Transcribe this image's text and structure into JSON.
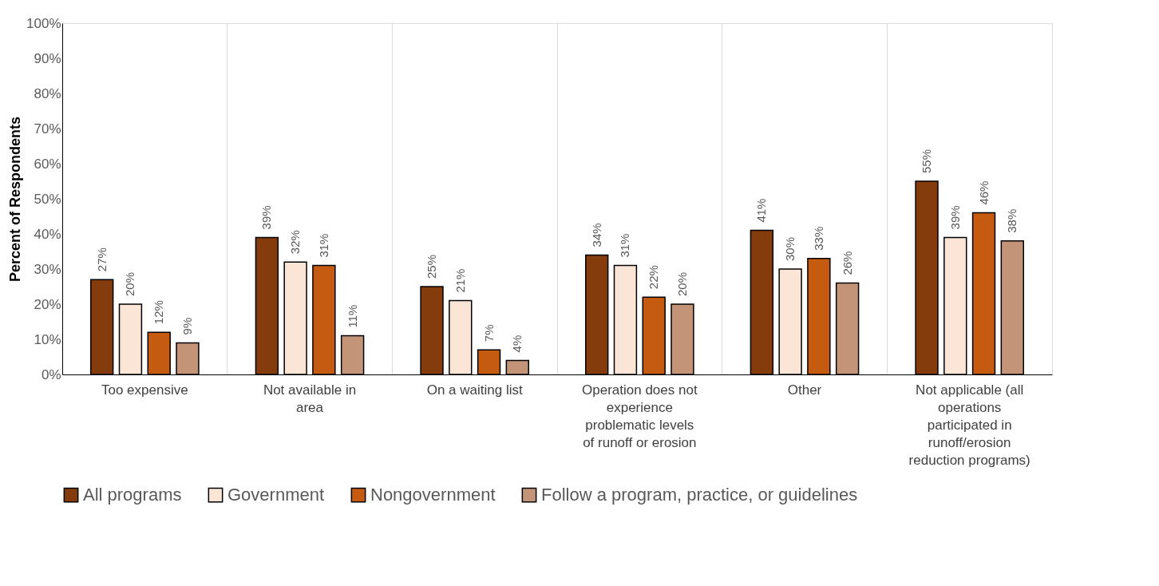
{
  "chart_data": {
    "type": "bar",
    "ylabel": "Percent of Respondents",
    "categories": [
      "Too expensive",
      "Not available in area",
      "On a waiting list",
      "Operation does not experience problematic levels of runoff or erosion",
      "Other",
      "Not applicable (all operations participated in runoff/erosion reduction programs)"
    ],
    "series": [
      {
        "name": "All programs",
        "color": "#843c0c",
        "values": [
          27,
          39,
          25,
          34,
          41,
          55
        ],
        "value_labels": [
          "27%",
          "39%",
          "25%",
          "34%",
          "41%",
          "55%"
        ]
      },
      {
        "name": "Government",
        "color": "#fbe5d6",
        "values": [
          20,
          32,
          21,
          31,
          30,
          39
        ],
        "value_labels": [
          "20%",
          "32%",
          "21%",
          "31%",
          "30%",
          "39%"
        ]
      },
      {
        "name": "Nongovernment",
        "color": "#c55a11",
        "values": [
          12,
          31,
          7,
          22,
          33,
          46
        ],
        "value_labels": [
          "12%",
          "31%",
          "7%",
          "22%",
          "33%",
          "46%"
        ]
      },
      {
        "name": "Follow a program, practice, or guidelines",
        "color": "#c49478",
        "values": [
          9,
          11,
          4,
          20,
          26,
          38
        ],
        "value_labels": [
          "9%",
          "11%",
          "4%",
          "20%",
          "26%",
          "38%"
        ]
      }
    ],
    "ylim": [
      0,
      100
    ],
    "yticks": [
      {
        "value": 0,
        "label": "0%"
      },
      {
        "value": 10,
        "label": "10%"
      },
      {
        "value": 20,
        "label": "20%"
      },
      {
        "value": 30,
        "label": "30%"
      },
      {
        "value": 40,
        "label": "40%"
      },
      {
        "value": 50,
        "label": "50%"
      },
      {
        "value": 60,
        "label": "60%"
      },
      {
        "value": 70,
        "label": "70%"
      },
      {
        "value": 80,
        "label": "80%"
      },
      {
        "value": 90,
        "label": "90%"
      },
      {
        "value": 100,
        "label": "100%"
      }
    ],
    "grid": "x",
    "legend": "bottom"
  }
}
